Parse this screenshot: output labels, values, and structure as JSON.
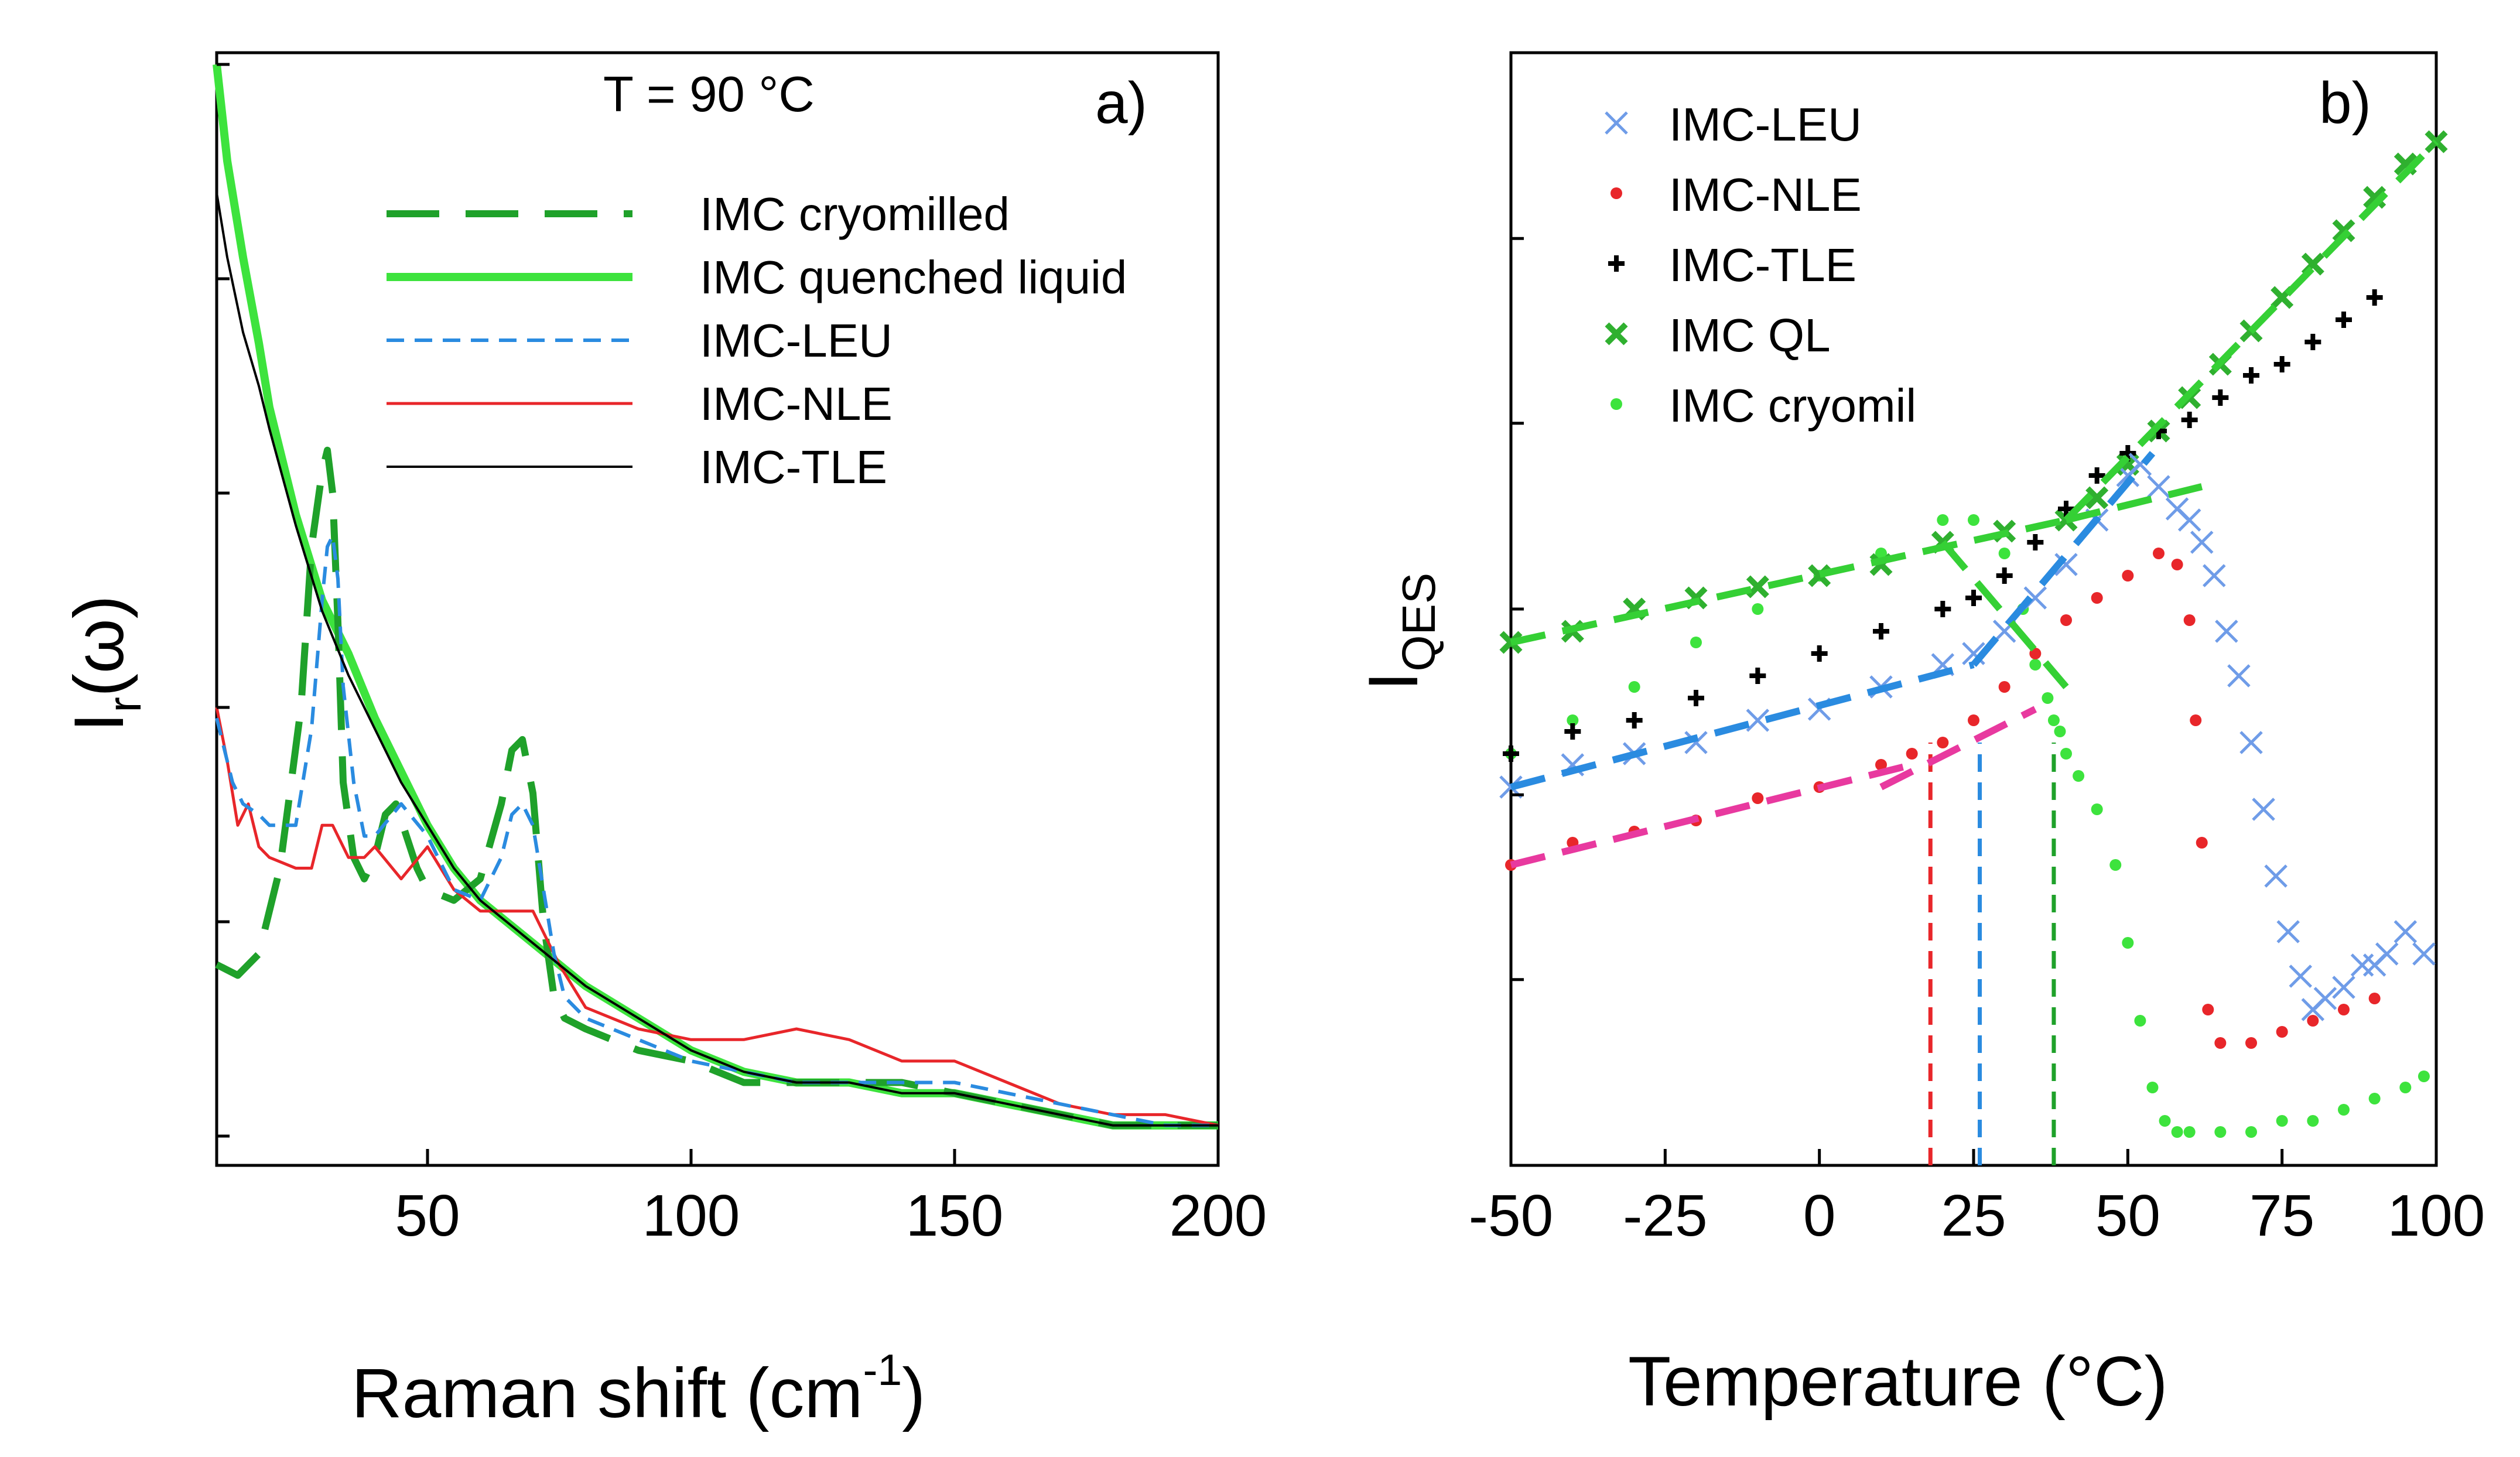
{
  "chart_data": [
    {
      "panel": "a)",
      "type": "line",
      "title": "",
      "annotation": "T = 90 °C",
      "xlabel": "Raman shift (cm",
      "xlabel_sup": "-1",
      "xlabel_close": ")",
      "ylabel": "I",
      "ylabel_sub": "r",
      "ylabel_rest": "(ω)",
      "xlim": [
        10,
        200
      ],
      "ylim": [
        0,
        1
      ],
      "xticks": [
        50,
        100,
        150,
        200
      ],
      "xtick_labels": [
        "50",
        "100",
        "150",
        "200"
      ],
      "yticks": [
        0.0,
        0.2,
        0.4,
        0.6,
        0.8,
        1.0
      ],
      "legend_position": "top-right",
      "series": [
        {
          "name": "IMC cryomilled",
          "color": "#1fa12a",
          "style": "long-dash",
          "x": [
            10,
            14,
            18,
            22,
            26,
            28,
            30,
            31,
            32,
            33,
            34,
            36,
            38,
            40,
            42,
            44,
            46,
            48,
            50,
            55,
            60,
            64,
            66,
            68,
            70,
            72,
            74,
            76,
            80,
            90,
            100,
            105,
            110,
            120,
            130,
            140,
            150,
            160,
            170,
            180,
            190,
            200
          ],
          "y": [
            0.16,
            0.15,
            0.17,
            0.25,
            0.4,
            0.55,
            0.62,
            0.64,
            0.6,
            0.48,
            0.33,
            0.26,
            0.24,
            0.26,
            0.3,
            0.31,
            0.28,
            0.25,
            0.23,
            0.22,
            0.24,
            0.31,
            0.36,
            0.37,
            0.32,
            0.2,
            0.13,
            0.11,
            0.1,
            0.08,
            0.07,
            0.06,
            0.05,
            0.05,
            0.05,
            0.05,
            0.04,
            0.03,
            0.02,
            0.01,
            0.01,
            0.01
          ]
        },
        {
          "name": "IMC quenched liquid",
          "color": "#3de33d",
          "style": "thick-solid",
          "x": [
            10,
            12,
            15,
            18,
            20,
            25,
            30,
            35,
            40,
            45,
            50,
            55,
            60,
            65,
            70,
            75,
            80,
            90,
            100,
            110,
            120,
            130,
            140,
            150,
            160,
            170,
            180,
            190,
            200
          ],
          "y": [
            1.0,
            0.91,
            0.82,
            0.74,
            0.68,
            0.58,
            0.5,
            0.45,
            0.39,
            0.34,
            0.29,
            0.25,
            0.22,
            0.2,
            0.18,
            0.16,
            0.14,
            0.11,
            0.08,
            0.06,
            0.05,
            0.05,
            0.04,
            0.04,
            0.03,
            0.02,
            0.01,
            0.01,
            0.01
          ]
        },
        {
          "name": "IMC-LEU",
          "color": "#2a8be0",
          "style": "dash",
          "x": [
            10,
            13,
            15,
            18,
            20,
            25,
            28,
            30,
            31,
            32,
            33,
            34,
            36,
            38,
            40,
            45,
            50,
            55,
            60,
            64,
            66,
            68,
            70,
            72,
            74,
            76,
            80,
            90,
            100,
            110,
            120,
            130,
            140,
            150,
            160,
            170,
            180,
            190,
            200
          ],
          "y": [
            0.39,
            0.33,
            0.31,
            0.3,
            0.29,
            0.29,
            0.38,
            0.5,
            0.55,
            0.56,
            0.52,
            0.42,
            0.33,
            0.28,
            0.28,
            0.31,
            0.28,
            0.23,
            0.22,
            0.26,
            0.3,
            0.31,
            0.29,
            0.23,
            0.17,
            0.13,
            0.11,
            0.09,
            0.07,
            0.06,
            0.05,
            0.05,
            0.05,
            0.05,
            0.04,
            0.03,
            0.02,
            0.01,
            0.01
          ]
        },
        {
          "name": "IMC-NLE",
          "color": "#e8262a",
          "style": "solid",
          "x": [
            10,
            12,
            14,
            16,
            18,
            20,
            25,
            28,
            30,
            32,
            35,
            38,
            40,
            45,
            50,
            55,
            60,
            65,
            70,
            75,
            80,
            90,
            100,
            110,
            120,
            130,
            140,
            150,
            160,
            170,
            180,
            190,
            200
          ],
          "y": [
            0.4,
            0.35,
            0.29,
            0.31,
            0.27,
            0.26,
            0.25,
            0.25,
            0.29,
            0.29,
            0.26,
            0.26,
            0.27,
            0.24,
            0.27,
            0.23,
            0.21,
            0.21,
            0.21,
            0.16,
            0.12,
            0.1,
            0.09,
            0.09,
            0.1,
            0.09,
            0.07,
            0.07,
            0.05,
            0.03,
            0.02,
            0.02,
            0.01
          ]
        },
        {
          "name": "IMC-TLE",
          "color": "#000000",
          "style": "thin-solid",
          "x": [
            10,
            12,
            15,
            18,
            20,
            25,
            30,
            35,
            40,
            45,
            50,
            55,
            60,
            65,
            70,
            75,
            80,
            90,
            100,
            110,
            120,
            130,
            140,
            150,
            160,
            170,
            180,
            190,
            200
          ],
          "y": [
            0.88,
            0.82,
            0.75,
            0.7,
            0.66,
            0.57,
            0.49,
            0.43,
            0.38,
            0.33,
            0.29,
            0.25,
            0.22,
            0.2,
            0.18,
            0.16,
            0.14,
            0.11,
            0.08,
            0.06,
            0.05,
            0.05,
            0.04,
            0.04,
            0.03,
            0.02,
            0.01,
            0.01,
            0.01
          ]
        }
      ]
    },
    {
      "panel": "b)",
      "type": "scatter",
      "title": "",
      "xlabel": "Temperature (°C)",
      "ylabel": "I",
      "ylabel_sub": "QES",
      "xlim": [
        -50,
        100
      ],
      "ylim": [
        0,
        1
      ],
      "xticks": [
        -50,
        -25,
        0,
        25,
        50,
        75,
        100
      ],
      "xtick_labels": [
        "-50",
        "-25",
        "0",
        "25",
        "50",
        "75",
        "100"
      ],
      "yticks": [
        0.0,
        0.167,
        0.333,
        0.5,
        0.667,
        0.833,
        1.0
      ],
      "legend_position": "top-left",
      "series": [
        {
          "name": "IMC-LEU",
          "color": "#6f9ce8",
          "marker": "x",
          "x": [
            -50,
            -40,
            -30,
            -20,
            -10,
            0,
            10,
            20,
            25,
            30,
            35,
            40,
            45,
            50,
            52,
            55,
            58,
            60,
            62,
            64,
            66,
            68,
            70,
            72,
            74,
            76,
            78,
            80,
            82,
            85,
            88,
            90,
            92,
            95,
            98
          ],
          "y": [
            0.34,
            0.36,
            0.37,
            0.38,
            0.4,
            0.41,
            0.43,
            0.45,
            0.46,
            0.48,
            0.51,
            0.54,
            0.58,
            0.62,
            0.63,
            0.61,
            0.59,
            0.58,
            0.56,
            0.53,
            0.48,
            0.44,
            0.38,
            0.32,
            0.26,
            0.21,
            0.17,
            0.14,
            0.15,
            0.16,
            0.18,
            0.18,
            0.19,
            0.21,
            0.19
          ]
        },
        {
          "name": "IMC-NLE",
          "color": "#e8262a",
          "marker": "dot",
          "x": [
            -50,
            -40,
            -30,
            -20,
            -10,
            0,
            10,
            15,
            20,
            25,
            30,
            35,
            40,
            45,
            50,
            55,
            58,
            60,
            61,
            62,
            63,
            65,
            70,
            75,
            80,
            85,
            90
          ],
          "y": [
            0.27,
            0.29,
            0.3,
            0.31,
            0.33,
            0.34,
            0.36,
            0.37,
            0.38,
            0.4,
            0.43,
            0.46,
            0.49,
            0.51,
            0.53,
            0.55,
            0.54,
            0.49,
            0.4,
            0.29,
            0.14,
            0.11,
            0.11,
            0.12,
            0.13,
            0.14,
            0.15
          ]
        },
        {
          "name": "IMC-TLE",
          "color": "#000000",
          "marker": "plus",
          "x": [
            -50,
            -40,
            -30,
            -20,
            -10,
            0,
            10,
            20,
            25,
            30,
            35,
            40,
            45,
            50,
            55,
            60,
            65,
            70,
            75,
            80,
            85,
            90
          ],
          "y": [
            0.37,
            0.39,
            0.4,
            0.42,
            0.44,
            0.46,
            0.48,
            0.5,
            0.51,
            0.53,
            0.56,
            0.59,
            0.62,
            0.64,
            0.66,
            0.67,
            0.69,
            0.71,
            0.72,
            0.74,
            0.76,
            0.78
          ]
        },
        {
          "name": "IMC QL",
          "color": "#2fb02f",
          "marker": "x-bold",
          "x": [
            -50,
            -40,
            -30,
            -20,
            -10,
            0,
            10,
            20,
            30,
            40,
            45,
            50,
            55,
            60,
            65,
            70,
            75,
            80,
            85,
            90,
            95,
            100
          ],
          "y": [
            0.47,
            0.48,
            0.5,
            0.51,
            0.52,
            0.53,
            0.54,
            0.56,
            0.57,
            0.58,
            0.6,
            0.63,
            0.66,
            0.69,
            0.72,
            0.75,
            0.78,
            0.81,
            0.84,
            0.87,
            0.9,
            0.92
          ]
        },
        {
          "name": "IMC cryomil",
          "color": "#3de33d",
          "marker": "dot",
          "x": [
            -50,
            -40,
            -30,
            -20,
            -10,
            0,
            10,
            20,
            25,
            30,
            33,
            35,
            37,
            38,
            39,
            40,
            42,
            45,
            48,
            50,
            52,
            54,
            56,
            58,
            60,
            65,
            70,
            75,
            80,
            85,
            90,
            95,
            98
          ],
          "y": [
            0.37,
            0.4,
            0.43,
            0.47,
            0.5,
            0.53,
            0.55,
            0.58,
            0.58,
            0.55,
            0.5,
            0.45,
            0.42,
            0.4,
            0.39,
            0.37,
            0.35,
            0.32,
            0.27,
            0.2,
            0.13,
            0.07,
            0.04,
            0.03,
            0.03,
            0.03,
            0.03,
            0.04,
            0.04,
            0.05,
            0.06,
            0.07,
            0.08
          ]
        }
      ],
      "fit_lines": [
        {
          "name": "IMC-NLE fit",
          "color": "#e8399f",
          "x": [
            -50,
            15
          ],
          "y": [
            0.27,
            0.36
          ]
        },
        {
          "name": "IMC-NLE fit high",
          "color": "#e8399f",
          "x": [
            10,
            35
          ],
          "y": [
            0.34,
            0.41
          ]
        },
        {
          "name": "IMC-LEU fit",
          "color": "#2a8be0",
          "x": [
            -50,
            25
          ],
          "y": [
            0.34,
            0.45
          ]
        },
        {
          "name": "IMC-LEU fit high",
          "color": "#2a8be0",
          "x": [
            25,
            54
          ],
          "y": [
            0.45,
            0.64
          ]
        },
        {
          "name": "IMC QL fit",
          "color": "#35d035",
          "x": [
            -50,
            40
          ],
          "y": [
            0.47,
            0.58
          ]
        },
        {
          "name": "IMC QL fit high",
          "color": "#35d035",
          "x": [
            40,
            100
          ],
          "y": [
            0.58,
            0.92
          ]
        },
        {
          "name": "IMC cryomil fit",
          "color": "#35d035",
          "x": [
            20,
            40
          ],
          "y": [
            0.56,
            0.43
          ]
        },
        {
          "name": "IMC cryomil fit high",
          "color": "#35d035",
          "x": [
            40,
            62
          ],
          "y": [
            0.58,
            0.61
          ]
        }
      ],
      "vlines": [
        {
          "x": 18,
          "color": "#e8262a"
        },
        {
          "x": 26,
          "color": "#2a8be0"
        },
        {
          "x": 38,
          "color": "#1fa12a"
        }
      ]
    }
  ]
}
